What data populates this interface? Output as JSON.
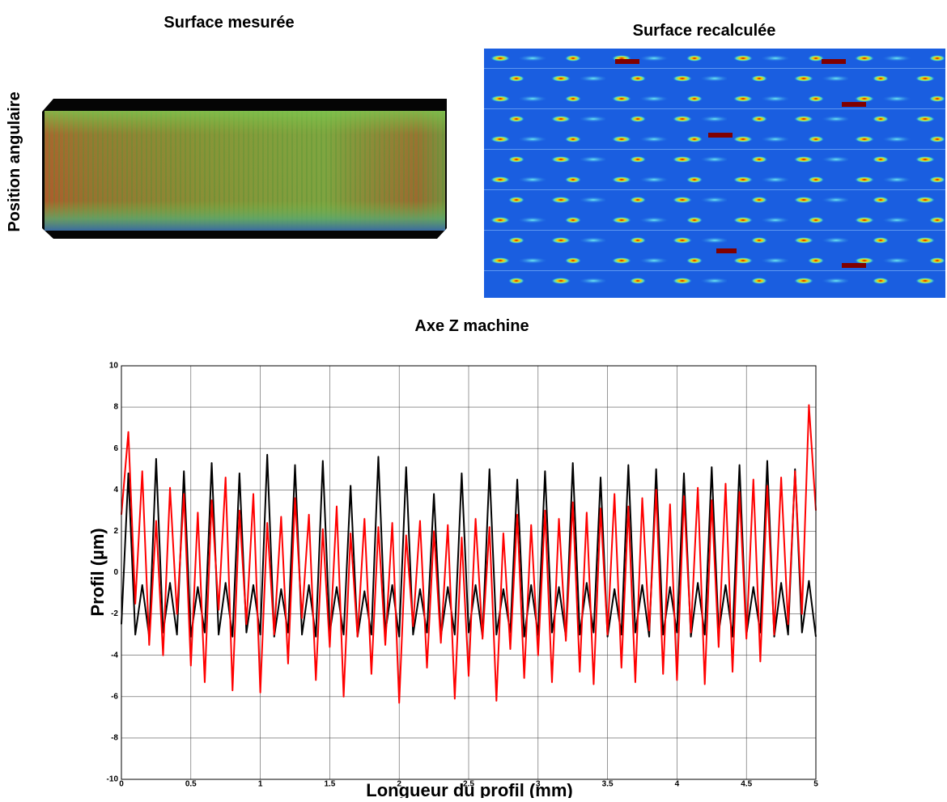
{
  "images": {
    "left_title": "Surface mesurée",
    "right_title": "Surface recalculée",
    "left_ylabel": "Position angulaire",
    "bottom_title": "Axe Z machine"
  },
  "chart_data": {
    "type": "line",
    "ylabel": "Profil (µm)",
    "xlabel": "Longueur du profil (mm)",
    "xlim": [
      0,
      5
    ],
    "xticks": [
      0,
      0.5,
      1,
      1.5,
      2,
      2.5,
      3,
      3.5,
      4,
      4.5,
      5
    ],
    "ylim": [
      -10,
      10
    ],
    "yticks": [
      -10,
      -8,
      -6,
      -4,
      -2,
      0,
      2,
      4,
      6,
      8,
      10
    ],
    "grid": true,
    "x": [
      0,
      0.05,
      0.1,
      0.15,
      0.2,
      0.25,
      0.3,
      0.35,
      0.4,
      0.45,
      0.5,
      0.55,
      0.6,
      0.65,
      0.7,
      0.75,
      0.8,
      0.85,
      0.9,
      0.95,
      1,
      1.05,
      1.1,
      1.15,
      1.2,
      1.25,
      1.3,
      1.35,
      1.4,
      1.45,
      1.5,
      1.55,
      1.6,
      1.65,
      1.7,
      1.75,
      1.8,
      1.85,
      1.9,
      1.95,
      2,
      2.05,
      2.1,
      2.15,
      2.2,
      2.25,
      2.3,
      2.35,
      2.4,
      2.45,
      2.5,
      2.55,
      2.6,
      2.65,
      2.7,
      2.75,
      2.8,
      2.85,
      2.9,
      2.95,
      3,
      3.05,
      3.1,
      3.15,
      3.2,
      3.25,
      3.3,
      3.35,
      3.4,
      3.45,
      3.5,
      3.55,
      3.6,
      3.65,
      3.7,
      3.75,
      3.8,
      3.85,
      3.9,
      3.95,
      4,
      4.05,
      4.1,
      4.15,
      4.2,
      4.25,
      4.3,
      4.35,
      4.4,
      4.45,
      4.5,
      4.55,
      4.6,
      4.65,
      4.7,
      4.75,
      4.8,
      4.85,
      4.9,
      4.95,
      5
    ],
    "series": [
      {
        "color": "#000000",
        "values": [
          -2.5,
          4.8,
          -3.0,
          -0.6,
          -3.1,
          5.5,
          -2.9,
          -0.5,
          -3.0,
          4.9,
          -3.1,
          -0.7,
          -2.9,
          5.3,
          -3.0,
          -0.5,
          -3.1,
          4.8,
          -2.9,
          -0.6,
          -3.0,
          5.7,
          -3.1,
          -0.8,
          -2.9,
          5.2,
          -3.0,
          -0.6,
          -3.1,
          5.4,
          -2.9,
          -0.7,
          -3.0,
          4.2,
          -3.1,
          -0.9,
          -3.0,
          5.6,
          -2.9,
          -0.6,
          -3.1,
          5.1,
          -3.0,
          -0.8,
          -2.9,
          3.8,
          -3.1,
          -0.7,
          -3.0,
          4.8,
          -2.9,
          -0.6,
          -3.1,
          5.0,
          -3.0,
          -0.8,
          -2.9,
          4.5,
          -3.1,
          -0.6,
          -3.0,
          4.9,
          -2.9,
          -0.7,
          -3.1,
          5.3,
          -3.0,
          -0.5,
          -2.9,
          4.6,
          -3.1,
          -0.8,
          -3.0,
          5.2,
          -2.9,
          -0.6,
          -3.1,
          5.0,
          -3.0,
          -0.7,
          -2.9,
          4.8,
          -3.1,
          -0.5,
          -3.0,
          5.1,
          -2.9,
          -0.6,
          -3.1,
          5.2,
          -3.0,
          -0.7,
          -2.9,
          5.4,
          -3.1,
          -0.5,
          -3.0,
          5.0,
          -2.9,
          -0.4,
          -3.1
        ]
      },
      {
        "color": "#ff0000",
        "values": [
          2.8,
          6.8,
          -1.5,
          4.9,
          -3.5,
          2.5,
          -4.0,
          4.1,
          -2.0,
          3.8,
          -4.5,
          2.9,
          -5.3,
          3.5,
          -1.8,
          4.6,
          -5.7,
          3.0,
          -2.5,
          3.8,
          -5.8,
          2.4,
          -3.0,
          2.7,
          -4.4,
          3.6,
          -2.2,
          2.8,
          -5.2,
          2.1,
          -3.6,
          3.2,
          -6.0,
          1.9,
          -3.1,
          2.6,
          -4.9,
          2.2,
          -3.5,
          2.4,
          -6.3,
          1.8,
          -2.6,
          2.5,
          -4.6,
          2.0,
          -3.4,
          2.3,
          -6.1,
          1.7,
          -5.0,
          2.6,
          -3.2,
          2.2,
          -6.2,
          1.9,
          -3.7,
          2.8,
          -5.1,
          2.3,
          -4.0,
          3.0,
          -5.3,
          2.6,
          -3.3,
          3.4,
          -4.8,
          2.9,
          -5.4,
          3.1,
          -3.0,
          3.8,
          -4.6,
          3.2,
          -5.3,
          3.6,
          -2.8,
          4.0,
          -4.9,
          3.3,
          -5.2,
          3.7,
          -2.9,
          4.1,
          -5.4,
          3.5,
          -3.6,
          4.3,
          -4.8,
          3.9,
          -3.2,
          4.5,
          -4.3,
          4.2,
          -3.0,
          4.6,
          -2.5,
          4.9,
          -2.0,
          8.1,
          3.0
        ]
      }
    ]
  }
}
